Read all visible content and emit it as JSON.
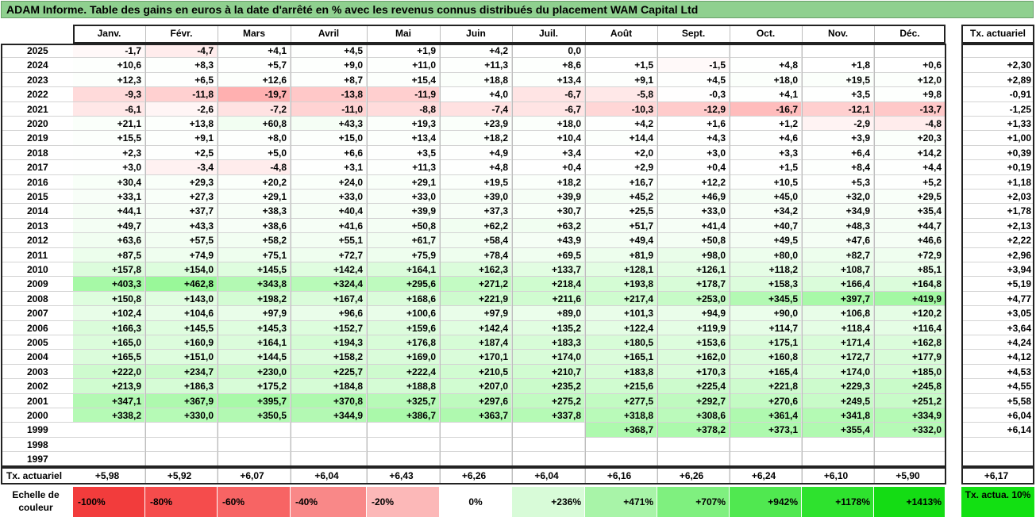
{
  "title": "ADAM Informe. Table des gains en euros à la date d'arrêté en % avec les revenus connus distribués du placement WAM Capital Ltd",
  "months": [
    "Janv.",
    "Févr.",
    "Mars",
    "Avril",
    "Mai",
    "Juin",
    "Juil.",
    "Août",
    "Sept.",
    "Oct.",
    "Nov.",
    "Déc."
  ],
  "tx_header": "Tx. actuariel",
  "rows": [
    {
      "year": "2025",
      "values": [
        "-1,7",
        "-4,7",
        "+4,1",
        "+4,5",
        "+1,9",
        "+4,2",
        "0,0",
        "",
        "",
        "",
        "",
        ""
      ],
      "tx": ""
    },
    {
      "year": "2024",
      "values": [
        "+10,6",
        "+8,3",
        "+5,7",
        "+9,0",
        "+11,0",
        "+11,3",
        "+8,6",
        "+1,5",
        "-1,5",
        "+4,8",
        "+1,8",
        "+0,6"
      ],
      "tx": "+2,30"
    },
    {
      "year": "2023",
      "values": [
        "+12,3",
        "+6,5",
        "+12,6",
        "+8,7",
        "+15,4",
        "+18,8",
        "+13,4",
        "+9,1",
        "+4,5",
        "+18,0",
        "+19,5",
        "+12,0"
      ],
      "tx": "+2,89"
    },
    {
      "year": "2022",
      "values": [
        "-9,3",
        "-11,8",
        "-19,7",
        "-13,8",
        "-11,9",
        "+4,0",
        "-6,7",
        "-5,8",
        "-0,3",
        "+4,1",
        "+3,5",
        "+9,8"
      ],
      "tx": "-0,91"
    },
    {
      "year": "2021",
      "values": [
        "-6,1",
        "-2,6",
        "-7,2",
        "-11,0",
        "-8,8",
        "-7,4",
        "-6,7",
        "-10,3",
        "-12,9",
        "-16,7",
        "-12,1",
        "-13,7"
      ],
      "tx": "-1,25"
    },
    {
      "year": "2020",
      "values": [
        "+21,1",
        "+13,8",
        "+60,8",
        "+43,3",
        "+19,3",
        "+23,9",
        "+18,0",
        "+4,2",
        "+1,6",
        "+1,2",
        "-2,9",
        "-4,8"
      ],
      "tx": "+1,33"
    },
    {
      "year": "2019",
      "values": [
        "+15,5",
        "+9,1",
        "+8,0",
        "+15,0",
        "+13,4",
        "+18,2",
        "+10,4",
        "+14,4",
        "+4,3",
        "+4,6",
        "+3,9",
        "+20,3"
      ],
      "tx": "+1,00"
    },
    {
      "year": "2018",
      "values": [
        "+2,3",
        "+2,5",
        "+5,0",
        "+6,6",
        "+3,5",
        "+4,9",
        "+3,4",
        "+2,0",
        "+3,0",
        "+3,3",
        "+6,4",
        "+14,2"
      ],
      "tx": "+0,39"
    },
    {
      "year": "2017",
      "values": [
        "+3,0",
        "-3,4",
        "-4,8",
        "+3,1",
        "+11,3",
        "+4,8",
        "+0,4",
        "+2,9",
        "+0,4",
        "+1,5",
        "+8,4",
        "+4,4"
      ],
      "tx": "+0,19"
    },
    {
      "year": "2016",
      "values": [
        "+30,4",
        "+29,3",
        "+20,2",
        "+24,0",
        "+29,1",
        "+19,5",
        "+18,2",
        "+16,7",
        "+12,2",
        "+10,5",
        "+5,3",
        "+5,2"
      ],
      "tx": "+1,18"
    },
    {
      "year": "2015",
      "values": [
        "+33,1",
        "+27,3",
        "+29,1",
        "+33,0",
        "+33,0",
        "+39,0",
        "+39,9",
        "+45,2",
        "+46,9",
        "+45,0",
        "+32,0",
        "+29,5"
      ],
      "tx": "+2,03"
    },
    {
      "year": "2014",
      "values": [
        "+44,1",
        "+37,7",
        "+38,3",
        "+40,4",
        "+39,9",
        "+37,3",
        "+30,7",
        "+25,5",
        "+33,0",
        "+34,2",
        "+34,9",
        "+35,4"
      ],
      "tx": "+1,78"
    },
    {
      "year": "2013",
      "values": [
        "+49,7",
        "+43,3",
        "+38,6",
        "+41,6",
        "+50,8",
        "+62,2",
        "+63,2",
        "+51,7",
        "+41,4",
        "+40,7",
        "+48,3",
        "+44,7"
      ],
      "tx": "+2,13"
    },
    {
      "year": "2012",
      "values": [
        "+63,6",
        "+57,5",
        "+58,2",
        "+55,1",
        "+61,7",
        "+58,4",
        "+43,9",
        "+49,4",
        "+50,8",
        "+49,5",
        "+47,6",
        "+46,6"
      ],
      "tx": "+2,22"
    },
    {
      "year": "2011",
      "values": [
        "+87,5",
        "+74,9",
        "+75,1",
        "+72,7",
        "+75,9",
        "+78,4",
        "+69,5",
        "+81,9",
        "+98,0",
        "+80,0",
        "+82,7",
        "+72,9"
      ],
      "tx": "+2,96"
    },
    {
      "year": "2010",
      "values": [
        "+157,8",
        "+154,0",
        "+145,5",
        "+142,4",
        "+164,1",
        "+162,3",
        "+133,7",
        "+128,1",
        "+126,1",
        "+118,2",
        "+108,7",
        "+85,1"
      ],
      "tx": "+3,94"
    },
    {
      "year": "2009",
      "values": [
        "+403,3",
        "+462,8",
        "+343,8",
        "+324,4",
        "+295,6",
        "+271,2",
        "+218,4",
        "+193,8",
        "+178,7",
        "+158,3",
        "+166,4",
        "+164,8"
      ],
      "tx": "+5,19"
    },
    {
      "year": "2008",
      "values": [
        "+150,8",
        "+143,0",
        "+198,2",
        "+167,4",
        "+168,6",
        "+221,9",
        "+211,6",
        "+217,4",
        "+253,0",
        "+345,5",
        "+397,7",
        "+419,9"
      ],
      "tx": "+4,77"
    },
    {
      "year": "2007",
      "values": [
        "+102,4",
        "+104,6",
        "+97,9",
        "+96,6",
        "+100,6",
        "+97,9",
        "+89,0",
        "+101,3",
        "+94,9",
        "+90,0",
        "+106,8",
        "+120,2"
      ],
      "tx": "+3,05"
    },
    {
      "year": "2006",
      "values": [
        "+166,3",
        "+145,5",
        "+145,3",
        "+152,7",
        "+159,6",
        "+142,4",
        "+135,2",
        "+122,4",
        "+119,9",
        "+114,7",
        "+118,4",
        "+116,4"
      ],
      "tx": "+3,64"
    },
    {
      "year": "2005",
      "values": [
        "+165,0",
        "+160,9",
        "+164,1",
        "+194,3",
        "+176,8",
        "+187,4",
        "+183,3",
        "+180,5",
        "+153,6",
        "+175,1",
        "+171,4",
        "+162,8"
      ],
      "tx": "+4,24"
    },
    {
      "year": "2004",
      "values": [
        "+165,5",
        "+151,0",
        "+144,5",
        "+158,2",
        "+169,0",
        "+170,1",
        "+174,0",
        "+165,1",
        "+162,0",
        "+160,8",
        "+172,7",
        "+177,9"
      ],
      "tx": "+4,12"
    },
    {
      "year": "2003",
      "values": [
        "+222,0",
        "+234,7",
        "+230,0",
        "+225,7",
        "+222,4",
        "+210,5",
        "+210,7",
        "+183,8",
        "+170,3",
        "+165,4",
        "+174,0",
        "+185,0"
      ],
      "tx": "+4,53"
    },
    {
      "year": "2002",
      "values": [
        "+213,9",
        "+186,3",
        "+175,2",
        "+184,8",
        "+188,8",
        "+207,0",
        "+235,2",
        "+215,6",
        "+225,4",
        "+221,8",
        "+229,3",
        "+245,8"
      ],
      "tx": "+4,55"
    },
    {
      "year": "2001",
      "values": [
        "+347,1",
        "+367,9",
        "+395,7",
        "+370,8",
        "+325,7",
        "+297,6",
        "+275,2",
        "+277,5",
        "+292,7",
        "+270,6",
        "+249,5",
        "+251,2"
      ],
      "tx": "+5,58"
    },
    {
      "year": "2000",
      "values": [
        "+338,2",
        "+330,0",
        "+350,5",
        "+344,9",
        "+386,7",
        "+363,7",
        "+337,8",
        "+318,8",
        "+308,6",
        "+361,4",
        "+341,8",
        "+334,9"
      ],
      "tx": "+6,04"
    },
    {
      "year": "1999",
      "values": [
        "",
        "",
        "",
        "",
        "",
        "",
        "",
        "+368,7",
        "+378,2",
        "+373,1",
        "+355,4",
        "+332,0"
      ],
      "tx": "+6,14"
    },
    {
      "year": "1998",
      "values": [
        "",
        "",
        "",
        "",
        "",
        "",
        "",
        "",
        "",
        "",
        "",
        ""
      ],
      "tx": ""
    },
    {
      "year": "1997",
      "values": [
        "",
        "",
        "",
        "",
        "",
        "",
        "",
        "",
        "",
        "",
        "",
        ""
      ],
      "tx": ""
    }
  ],
  "footer": {
    "label": "Tx. actuariel",
    "values": [
      "+5,98",
      "+5,92",
      "+6,07",
      "+6,04",
      "+6,43",
      "+6,26",
      "+6,04",
      "+6,16",
      "+6,26",
      "+6,24",
      "+6,10",
      "+5,90"
    ],
    "tx": "+6,17"
  },
  "scale": {
    "label": "Echelle de couleur",
    "items": [
      {
        "text": "-100%",
        "color": "#f23c3c",
        "kind": "neg"
      },
      {
        "text": "-80%",
        "color": "#f54c4c",
        "kind": "neg"
      },
      {
        "text": "-60%",
        "color": "#f76464",
        "kind": "neg"
      },
      {
        "text": "-40%",
        "color": "#f98888",
        "kind": "neg"
      },
      {
        "text": "-20%",
        "color": "#fcb8b8",
        "kind": "neg"
      },
      {
        "text": "0%",
        "color": "#ffffff",
        "kind": "zero"
      },
      {
        "text": "+236%",
        "color": "#d8fbd8",
        "kind": "pos"
      },
      {
        "text": "+471%",
        "color": "#a8f4a8",
        "kind": "pos"
      },
      {
        "text": "+707%",
        "color": "#7ff07f",
        "kind": "pos"
      },
      {
        "text": "+942%",
        "color": "#50e850",
        "kind": "pos"
      },
      {
        "text": "+1178%",
        "color": "#2ee22e",
        "kind": "pos"
      },
      {
        "text": "+1413%",
        "color": "#14dc14",
        "kind": "pos"
      }
    ],
    "tx_label": "Tx. actua. 10%",
    "tx_color": "#12e012"
  },
  "colors": {
    "negative": "#f23c3c",
    "positive": "#14dc14",
    "title_bg": "#8fd08f"
  }
}
